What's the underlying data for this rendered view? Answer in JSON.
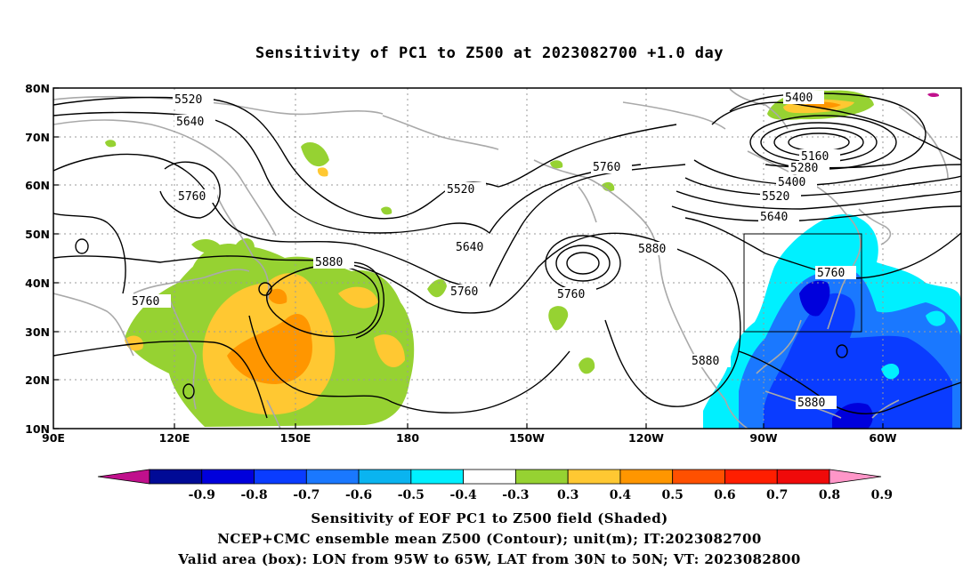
{
  "title": "Sensitivity of PC1 to Z500 at 2023082700 +1.0 day",
  "y_axis_labels": [
    "80N",
    "70N",
    "60N",
    "50N",
    "40N",
    "30N",
    "20N",
    "10N"
  ],
  "x_axis_labels": [
    "90E",
    "120E",
    "150E",
    "180",
    "150W",
    "120W",
    "90W",
    "60W"
  ],
  "contour_labels": [
    "5520",
    "5640",
    "5760",
    "5400",
    "5160",
    "5280",
    "5400",
    "5520",
    "5640",
    "5520",
    "5760",
    "5640",
    "5880",
    "5760",
    "5760",
    "5880",
    "5760",
    "5880",
    "5880",
    "5760"
  ],
  "colorbar": {
    "labels": [
      "-0.9",
      "-0.8",
      "-0.7",
      "-0.6",
      "-0.5",
      "-0.4",
      "-0.3",
      "0.3",
      "0.4",
      "0.5",
      "0.6",
      "0.7",
      "0.8",
      "0.9"
    ],
    "colors": [
      "#c0108c",
      "#000a96",
      "#0000dc",
      "#0a3cff",
      "#1a78ff",
      "#0ab4f0",
      "#00f0ff",
      "#ffffff",
      "#96d232",
      "#ffc832",
      "#ff9600",
      "#ff5000",
      "#ff1e00",
      "#f00a0a",
      "#ff96c8"
    ]
  },
  "valid_box": {
    "lon_west": "95W",
    "lon_east": "65W",
    "lat_south": "30N",
    "lat_north": "50N"
  },
  "captions": [
    "Sensitivity of EOF PC1 to Z500 field (Shaded)",
    "NCEP+CMC ensemble mean Z500 (Contour); unit(m); IT:2023082700",
    "Valid area (box): LON from 95W to 65W, LAT from 30N to 50N; VT: 2023082800"
  ]
}
